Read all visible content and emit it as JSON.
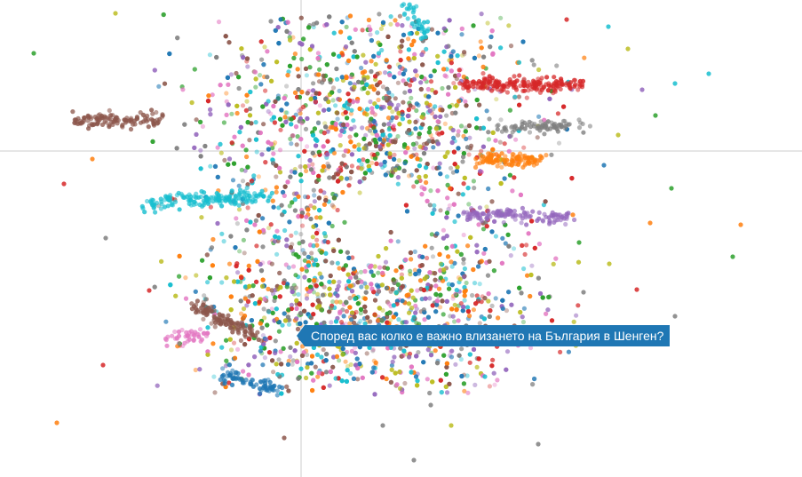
{
  "chart_data": {
    "type": "scatter",
    "title": "",
    "xlabel": "",
    "ylabel": "",
    "grid": false,
    "crosshair": true,
    "palette": [
      "#1f77b4",
      "#ff7f0e",
      "#2ca02c",
      "#d62728",
      "#9467bd",
      "#8c564b",
      "#e377c2",
      "#7f7f7f",
      "#bcbd22",
      "#17becf"
    ],
    "hovered_label": "Според вас колко е важно влизането на България в Шенген?",
    "series_count": 10
  },
  "colors": {
    "tooltip_bg": "#1f77b4",
    "tooltip_text": "#ffffff",
    "crosshair": "#e6e6e6"
  }
}
